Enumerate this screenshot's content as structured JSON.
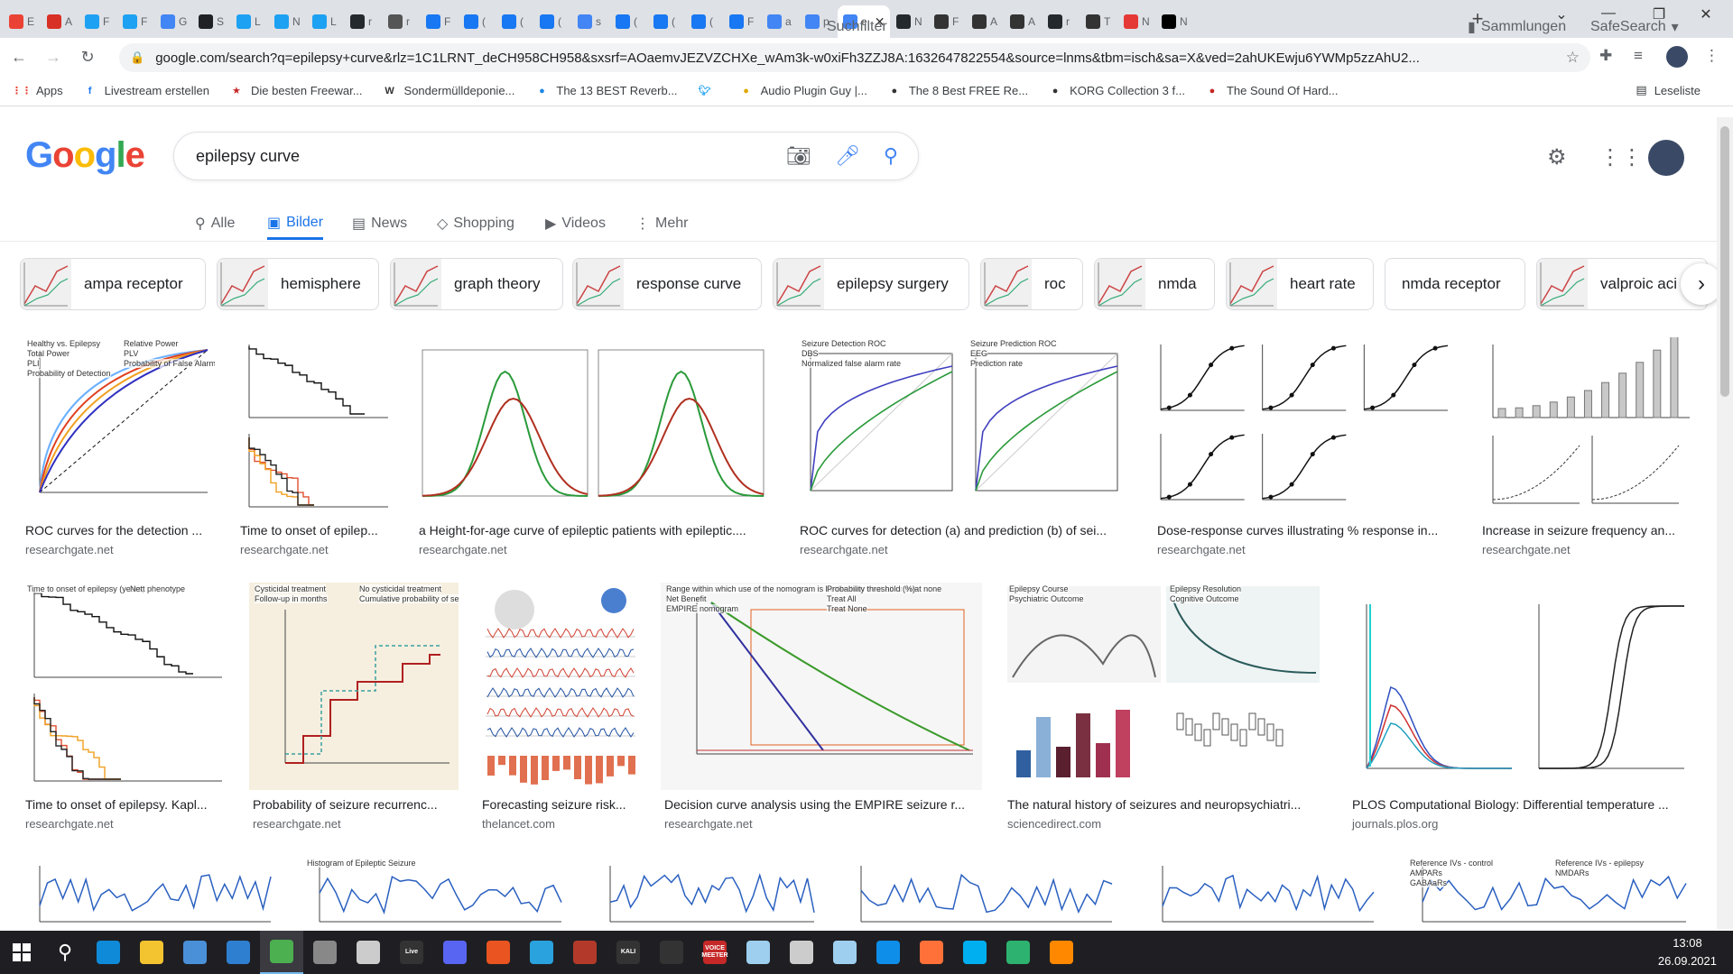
{
  "browser": {
    "tabs": [
      {
        "label": "E",
        "icon": "gmail-icon",
        "color": "#ea4335"
      },
      {
        "label": "A",
        "icon": "shield-icon",
        "color": "#d93025"
      },
      {
        "label": "F",
        "icon": "twitter-icon",
        "color": "#1da1f2"
      },
      {
        "label": "F",
        "icon": "twitter-icon",
        "color": "#1da1f2"
      },
      {
        "label": "G",
        "icon": "google-icon",
        "color": "#4285f4"
      },
      {
        "label": "S",
        "icon": "info-icon",
        "color": "#202124"
      },
      {
        "label": "L",
        "icon": "twitter-icon",
        "color": "#1da1f2"
      },
      {
        "label": "N",
        "icon": "twitter-icon",
        "color": "#1da1f2"
      },
      {
        "label": "L",
        "icon": "twitter-icon",
        "color": "#1da1f2"
      },
      {
        "label": "r",
        "icon": "github-icon",
        "color": "#24292e"
      },
      {
        "label": "r",
        "icon": "github-icon",
        "color": "#555555"
      },
      {
        "label": "F",
        "icon": "facebook-icon",
        "color": "#1877f2"
      },
      {
        "label": "(",
        "icon": "facebook-icon",
        "color": "#1877f2"
      },
      {
        "label": "(",
        "icon": "facebook-icon",
        "color": "#1877f2"
      },
      {
        "label": "(",
        "icon": "facebook-icon",
        "color": "#1877f2"
      },
      {
        "label": "s",
        "icon": "google-icon",
        "color": "#4285f4"
      },
      {
        "label": "(",
        "icon": "facebook-icon",
        "color": "#1877f2"
      },
      {
        "label": "(",
        "icon": "facebook-icon",
        "color": "#1877f2"
      },
      {
        "label": "(",
        "icon": "facebook-icon",
        "color": "#1877f2"
      },
      {
        "label": "F",
        "icon": "facebook-icon",
        "color": "#1877f2"
      },
      {
        "label": "a",
        "icon": "google-icon",
        "color": "#4285f4"
      },
      {
        "label": "p",
        "icon": "google-icon",
        "color": "#4285f4"
      },
      {
        "label": "e",
        "icon": "google-icon",
        "color": "#4285f4",
        "active": true
      },
      {
        "label": "N",
        "icon": "github-icon",
        "color": "#24292e"
      },
      {
        "label": "F",
        "icon": "tool-icon",
        "color": "#333333"
      },
      {
        "label": "A",
        "icon": "wa-icon",
        "color": "#333333"
      },
      {
        "label": "A",
        "icon": "wa-icon",
        "color": "#333333"
      },
      {
        "label": "r",
        "icon": "github-icon",
        "color": "#24292e"
      },
      {
        "label": "T",
        "icon": "speaker-icon",
        "color": "#333333"
      },
      {
        "label": "N",
        "icon": "record-icon",
        "color": "#e53935"
      },
      {
        "label": "N",
        "icon": "medium-icon",
        "color": "#000000"
      }
    ],
    "new_tab": "+",
    "window_controls": [
      "⌄",
      "—",
      "❐",
      "✕"
    ],
    "url": "google.com/search?q=epilepsy+curve&rlz=1C1LRNT_deCH958CH958&sxsrf=AOaemvJEZVZCHXe_wAm3k-w0xiFh3ZZJ8A:1632647822554&source=lnms&tbm=isch&sa=X&ved=2ahUKEwju6YWMp5zzAhU2..."
  },
  "bookmarks": [
    {
      "label": "Apps",
      "icon": "apps-grid-icon",
      "color": "#ea4335"
    },
    {
      "label": "Livestream erstellen",
      "icon": "facebook-icon",
      "color": "#1877f2"
    },
    {
      "label": "Die besten Freewar...",
      "icon": "star-icon",
      "color": "#c62828"
    },
    {
      "label": "Sondermülldeponie...",
      "icon": "w-icon",
      "color": "#333333"
    },
    {
      "label": "The 13 BEST Reverb...",
      "icon": "wave-icon",
      "color": "#1e88e5"
    },
    {
      "label": "",
      "icon": "twitter-icon",
      "color": "#1da1f2"
    },
    {
      "label": "Audio Plugin Guy |...",
      "icon": "plugin-icon",
      "color": "#e0a800"
    },
    {
      "label": "The 8 Best FREE Re...",
      "icon": "moon-icon",
      "color": "#333333"
    },
    {
      "label": "KORG Collection 3 f...",
      "icon": "korg-icon",
      "color": "#333333"
    },
    {
      "label": "The Sound Of Hard...",
      "icon": "flag-icon",
      "color": "#c62828"
    }
  ],
  "reading_list": "Leseliste",
  "search": {
    "logo": "Google",
    "query": "epilepsy curve"
  },
  "nav_tabs": [
    {
      "label": "Alle",
      "icon": "search-icon"
    },
    {
      "label": "Bilder",
      "icon": "image-icon",
      "active": true
    },
    {
      "label": "News",
      "icon": "news-icon"
    },
    {
      "label": "Shopping",
      "icon": "tag-icon"
    },
    {
      "label": "Videos",
      "icon": "video-icon"
    },
    {
      "label": "Mehr",
      "icon": "more-vert-icon"
    }
  ],
  "suchfilter": "Suchfilter",
  "sammlungen": "Sammlungen",
  "safesearch": "SafeSearch",
  "chips": [
    "ampa receptor",
    "hemisphere",
    "graph theory",
    "response curve",
    "epilepsy surgery",
    "roc",
    "nmda",
    "heart rate",
    "nmda receptor",
    "valproic aci"
  ],
  "results_row1": [
    {
      "caption": "ROC curves for the detection ...",
      "source": "researchgate.net",
      "img_title": "Healthy vs. Epilepsy",
      "img_legend": [
        "Relative Power",
        "Total Power",
        "PLV",
        "PLI"
      ],
      "img_xlabel": "Probability of False Alarm",
      "img_ylabel": "Probability of Detection"
    },
    {
      "caption": "Time to onset of epilep...",
      "source": "researchgate.net"
    },
    {
      "caption": "a Height-for-age curve of epileptic patients with epileptic....",
      "source": "researchgate.net"
    },
    {
      "caption": "ROC curves for detection (a) and prediction (b) of sei...",
      "source": "researchgate.net",
      "img_title_a": "Seizure Detection ROC",
      "img_title_b": "Seizure Prediction ROC",
      "img_legend": [
        "DBS",
        "EEG"
      ],
      "img_xlabel": "Normalized false alarm rate",
      "img_ylabel": "Prediction rate"
    },
    {
      "caption": "Dose-response curves illustrating % response in...",
      "source": "researchgate.net"
    },
    {
      "caption": "Increase in seizure frequency an...",
      "source": "researchgate.net"
    }
  ],
  "results_row2": [
    {
      "caption": "Time to onset of epilepsy. Kapl...",
      "source": "researchgate.net",
      "img_xlabel": "Time to onset of epilepsy (years)",
      "img_legend_title": "Nett phenotype"
    },
    {
      "caption": "Probability of seizure recurrenc...",
      "source": "researchgate.net",
      "img_legend": [
        "Cysticidal treatment",
        "No cysticidal treatment"
      ],
      "img_xlabel": "Follow-up in months",
      "img_ylabel": "Cumulative probability of seizure recurrence"
    },
    {
      "caption": "Forecasting seizure risk...",
      "source": "thelancet.com"
    },
    {
      "caption": "Decision curve analysis using the EMPIRE seizure r...",
      "source": "researchgate.net",
      "img_header": "Range within which use of the nomogram is better than treat all or treat none",
      "img_xlabel": "Probability threshold (%)",
      "img_ylabel": "Net Benefit",
      "img_labels": [
        "Treat All",
        "EMPIRE nomogram",
        "Treat None"
      ]
    },
    {
      "caption": "The natural history of seizures and neuropsychiatri...",
      "source": "sciencedirect.com",
      "img_labels": [
        "Epilepsy Course",
        "Epilepsy Resolution",
        "Psychiatric Outcome",
        "Cognitive Outcome"
      ]
    },
    {
      "caption": "PLOS Computational Biology: Differential temperature ...",
      "source": "journals.plos.org"
    }
  ],
  "results_row3": [
    {
      "label": ""
    },
    {
      "label": "Histogram of Epileptic Seizure"
    },
    {
      "label": ""
    },
    {
      "label": ""
    },
    {
      "label": ""
    },
    {
      "label": "Reference IVs - control",
      "label2": "Reference IVs - epilepsy",
      "legend": [
        "AMPARs",
        "NMDARs",
        "GABAaRs"
      ]
    }
  ],
  "taskbar": {
    "apps": [
      {
        "name": "windows-start-icon",
        "color": "#ffffff",
        "label": ""
      },
      {
        "name": "search-icon",
        "color": "#ffffff",
        "label": ""
      },
      {
        "name": "edge-icon",
        "color": "#0f8ad8",
        "label": ""
      },
      {
        "name": "file-explorer-icon",
        "color": "#f4c430",
        "label": ""
      },
      {
        "name": "store-icon",
        "color": "#4a90d9",
        "label": ""
      },
      {
        "name": "mail-icon",
        "color": "#2f7fd1",
        "label": ""
      },
      {
        "name": "chrome-icon",
        "color": "#4caf50",
        "label": "",
        "active": true
      },
      {
        "name": "game-icon",
        "color": "#888888",
        "label": ""
      },
      {
        "name": "jet-icon",
        "color": "#cccccc",
        "label": ""
      },
      {
        "name": "live-icon",
        "color": "#333333",
        "label": "Live"
      },
      {
        "name": "discord-icon",
        "color": "#5865f2",
        "label": ""
      },
      {
        "name": "ubuntu-icon",
        "color": "#e95420",
        "label": ""
      },
      {
        "name": "telegram-icon",
        "color": "#2aa2dd",
        "label": ""
      },
      {
        "name": "terminal-icon",
        "color": "#b33a2a",
        "label": ""
      },
      {
        "name": "kali-icon",
        "color": "#333333",
        "label": "KALI"
      },
      {
        "name": "x-icon",
        "color": "#333333",
        "label": ""
      },
      {
        "name": "voicemeeter-icon",
        "color": "#c62828",
        "label": "VOICE MEETER"
      },
      {
        "name": "cloud-icon",
        "color": "#9ecfef",
        "label": ""
      },
      {
        "name": "vm-icon",
        "color": "#cccccc",
        "label": ""
      },
      {
        "name": "cube-icon",
        "color": "#9ecfef",
        "label": ""
      },
      {
        "name": "teamviewer-icon",
        "color": "#0e8ee9",
        "label": ""
      },
      {
        "name": "firefox-icon",
        "color": "#ff7139",
        "label": ""
      },
      {
        "name": "skype-icon",
        "color": "#00aff0",
        "label": ""
      },
      {
        "name": "mercedes-icon",
        "color": "#2db36f",
        "label": ""
      },
      {
        "name": "vlc-icon",
        "color": "#ff8800",
        "label": ""
      }
    ],
    "time": "13:08",
    "date": "26.09.2021"
  },
  "colors": {
    "google_blue": "#4285f4",
    "google_red": "#ea4335",
    "google_yellow": "#fbbc05",
    "google_green": "#34a853",
    "link_blue": "#1a73e8"
  }
}
